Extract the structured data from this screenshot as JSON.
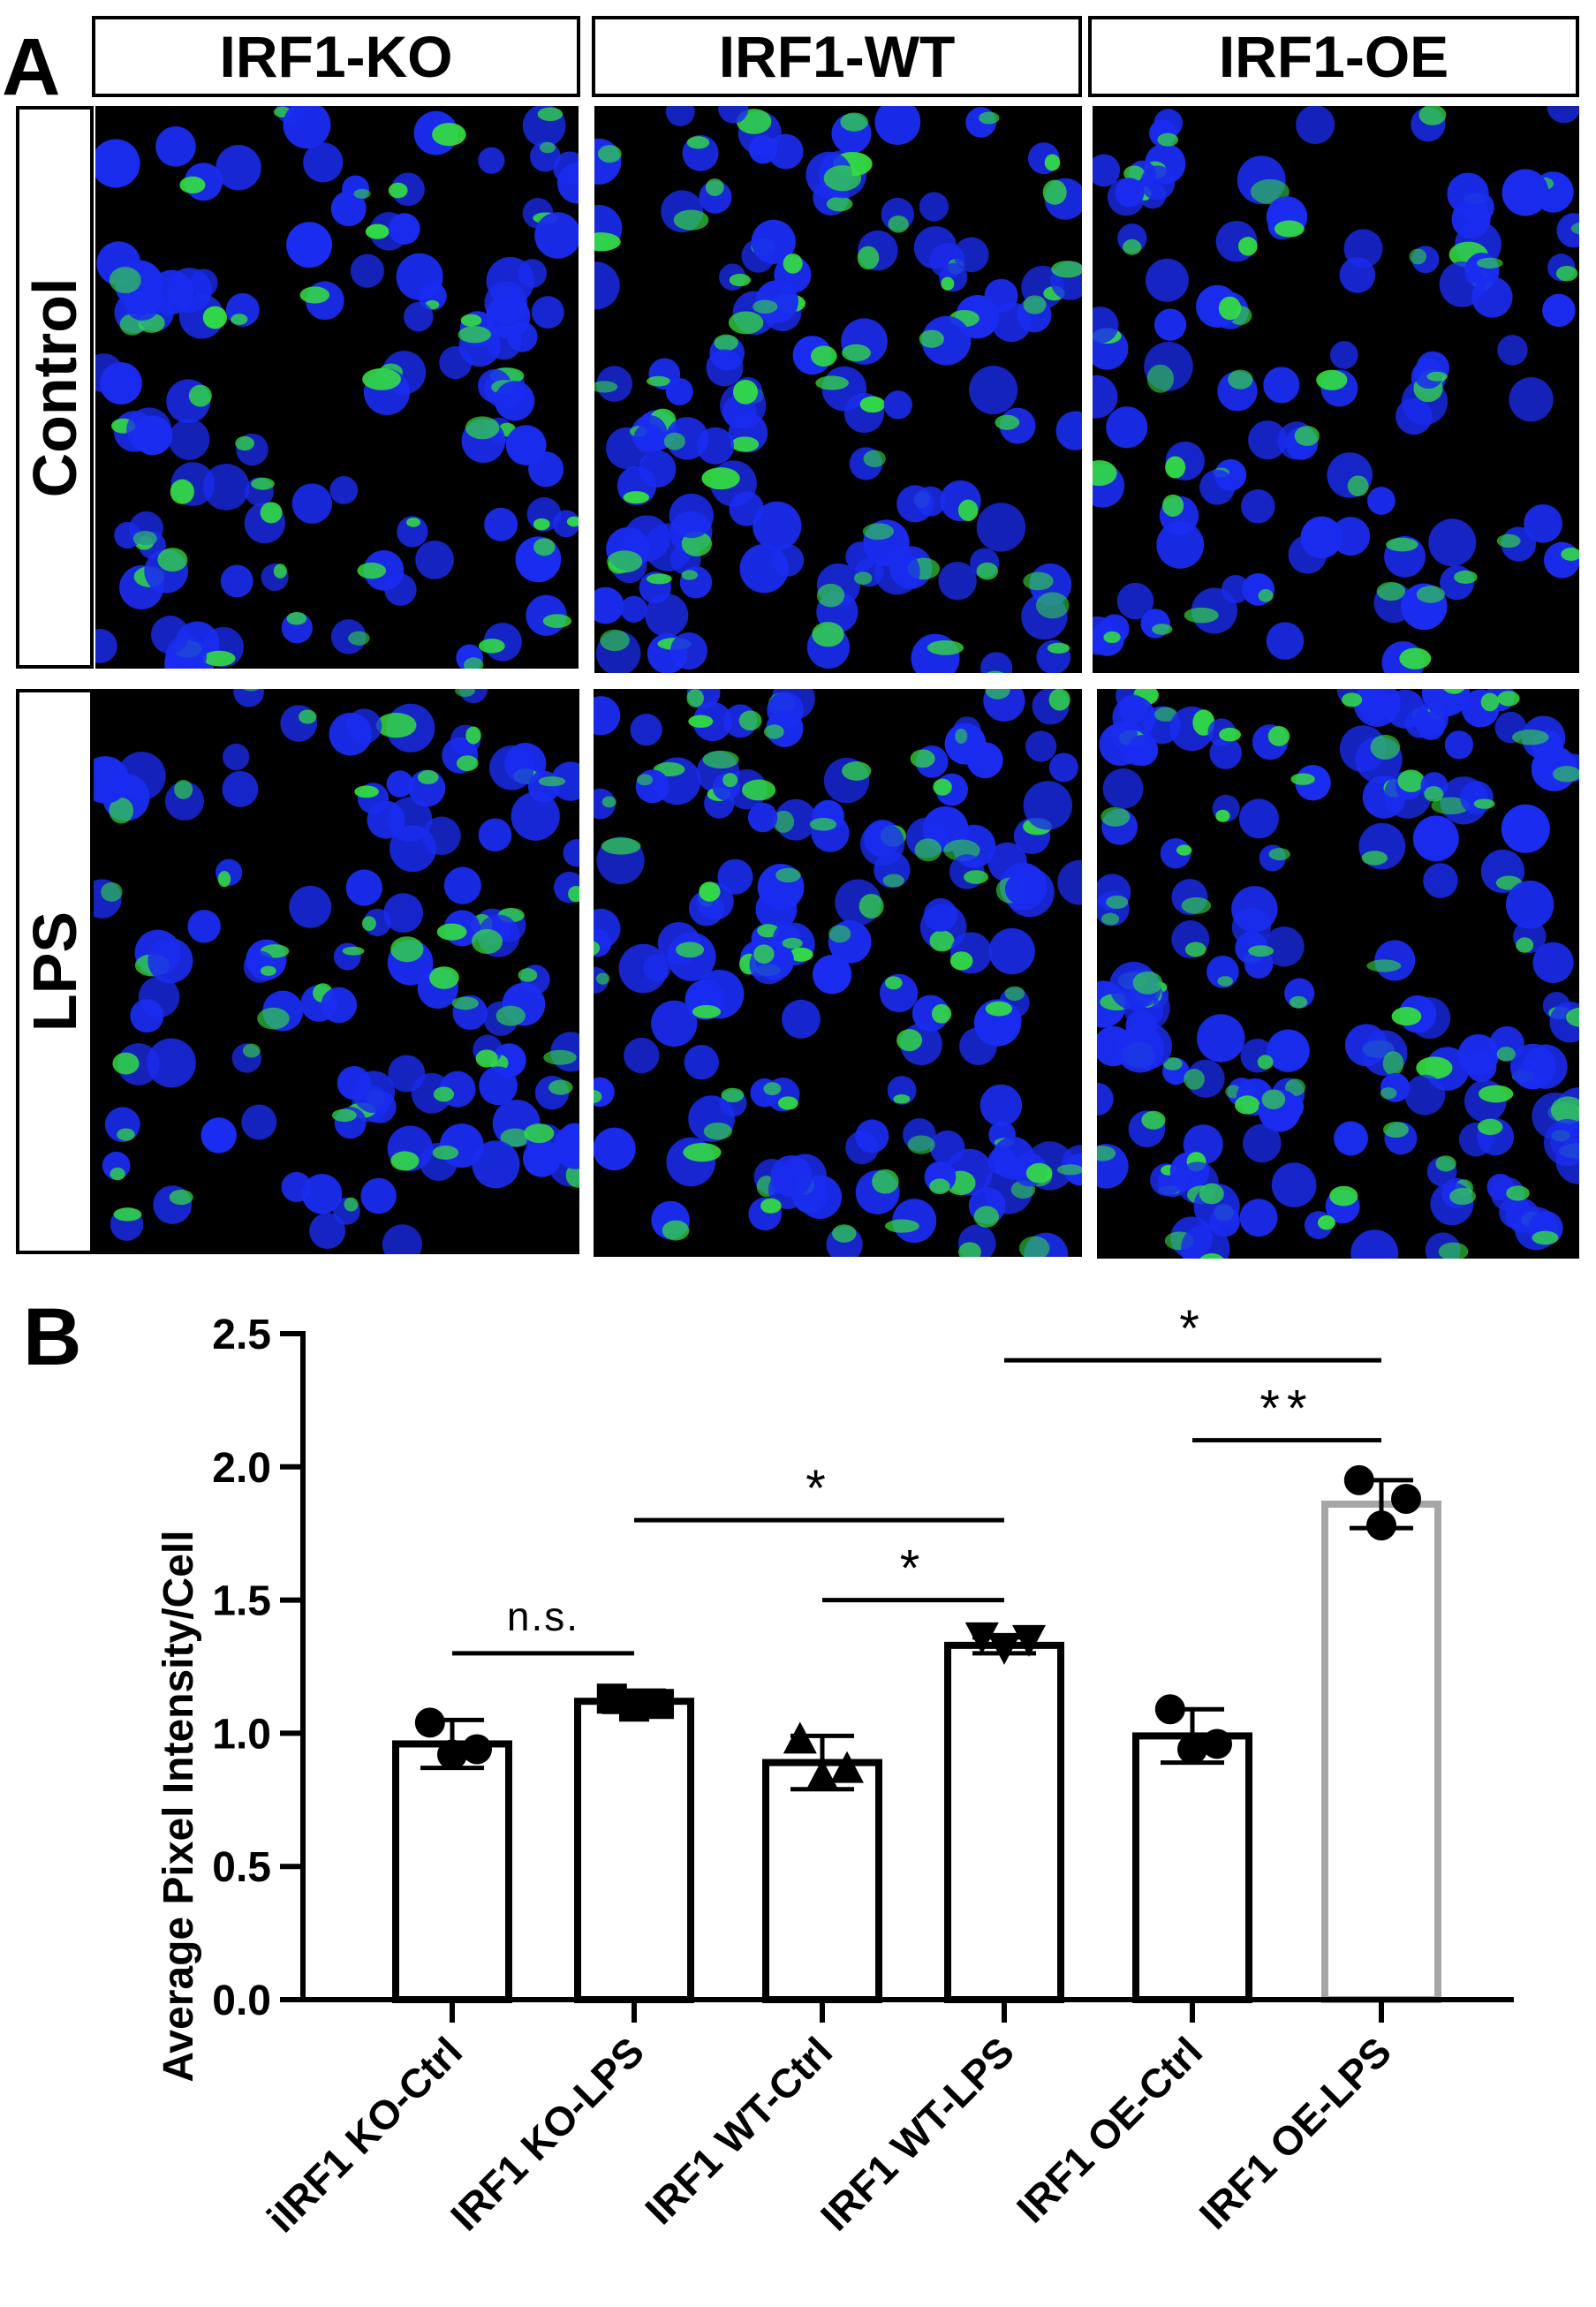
{
  "panel_a": {
    "label": "A",
    "columns": [
      "IRF1-KO",
      "IRF1-WT",
      "IRF1-OE"
    ],
    "rows": [
      "Control",
      "LPS"
    ],
    "colors": {
      "nuclei": "#1a2cf0",
      "signal": "#33e040",
      "background": "#000000"
    }
  },
  "panel_b": {
    "label": "B"
  },
  "chart_data": {
    "type": "bar",
    "ylabel": "Average Pixel Intensity/Cell",
    "xlabel": "",
    "ylim": [
      0,
      2.5
    ],
    "yticks": [
      "0.0",
      "0.5",
      "1.0",
      "1.5",
      "2.0",
      "2.5"
    ],
    "categories": [
      "iIRF1 KO-Ctrl",
      "IRF1 KO-LPS",
      "IRF1 WT-Ctrl",
      "IRF1 WT-LPS",
      "IRF1 OE-Ctrl",
      "IRF1 OE-LPS"
    ],
    "values": [
      0.96,
      1.12,
      0.89,
      1.33,
      0.99,
      1.86
    ],
    "errors": [
      0.09,
      0.04,
      0.1,
      0.03,
      0.1,
      0.09
    ],
    "bar_edge_colors": [
      "#000000",
      "#000000",
      "#000000",
      "#000000",
      "#000000",
      "#a6a6a6"
    ],
    "markers": [
      "circle",
      "square",
      "triangle-up",
      "triangle-down",
      "circle",
      "circle"
    ],
    "points": [
      [
        1.04,
        0.92,
        0.94
      ],
      [
        1.13,
        1.1,
        1.11
      ],
      [
        0.98,
        0.84,
        0.87
      ],
      [
        1.36,
        1.32,
        1.35
      ],
      [
        1.09,
        0.94,
        0.96
      ],
      [
        1.95,
        1.78,
        1.88
      ]
    ],
    "comparisons": [
      {
        "from": 0,
        "to": 1,
        "level": 1.3,
        "label": "n.s."
      },
      {
        "from": 1,
        "to": 3,
        "level": 1.8,
        "label": "*"
      },
      {
        "from": 2,
        "to": 3,
        "level": 1.5,
        "label": "*"
      },
      {
        "from": 4,
        "to": 5,
        "level": 2.1,
        "label": "**"
      },
      {
        "from": 3,
        "to": 5,
        "level": 2.4,
        "label": "*"
      }
    ]
  }
}
